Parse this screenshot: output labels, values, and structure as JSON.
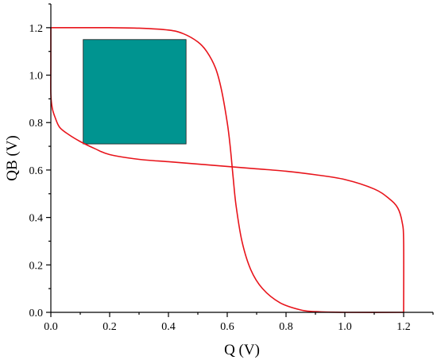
{
  "chart_data": {
    "type": "line",
    "title": "",
    "xlabel": "Q (V)",
    "ylabel": "QB (V)",
    "xlim": [
      0.0,
      1.3
    ],
    "ylim": [
      0.0,
      1.3
    ],
    "x_ticks": [
      "0.0",
      "0.2",
      "0.4",
      "0.6",
      "0.8",
      "1.0",
      "1.2"
    ],
    "y_ticks": [
      "0.0",
      "0.2",
      "0.4",
      "0.6",
      "0.8",
      "1.0",
      "1.2"
    ],
    "grid": false,
    "legend": "none",
    "colors": {
      "curve": "#e8141b",
      "box": "#009490"
    },
    "series": [
      {
        "x": [
          0.0,
          0.05,
          0.1,
          0.2,
          0.3,
          0.4,
          0.45,
          0.5,
          0.53,
          0.56,
          0.58,
          0.6,
          0.61,
          0.62,
          0.63,
          0.65,
          0.68,
          0.72,
          0.78,
          0.85,
          0.9,
          1.0,
          1.2
        ],
        "y": [
          1.2,
          1.2,
          1.2,
          1.2,
          1.198,
          1.19,
          1.175,
          1.14,
          1.1,
          1.03,
          0.94,
          0.8,
          0.7,
          0.57,
          0.45,
          0.3,
          0.18,
          0.1,
          0.04,
          0.01,
          0.003,
          0.0,
          0.0
        ]
      },
      {
        "x": [
          0.0,
          0.0,
          0.0,
          0.005,
          0.015,
          0.03,
          0.06,
          0.1,
          0.15,
          0.2,
          0.3,
          0.4,
          0.5,
          0.6,
          0.7,
          0.8,
          0.9,
          1.0,
          1.1,
          1.15,
          1.18,
          1.195,
          1.2,
          1.2
        ],
        "y": [
          1.2,
          1.05,
          0.92,
          0.86,
          0.82,
          0.78,
          0.75,
          0.72,
          0.69,
          0.665,
          0.645,
          0.635,
          0.625,
          0.615,
          0.605,
          0.595,
          0.58,
          0.56,
          0.52,
          0.48,
          0.44,
          0.38,
          0.3,
          0.0
        ]
      }
    ],
    "annotations": [
      {
        "type": "rect",
        "x0": 0.11,
        "x1": 0.46,
        "y0": 0.71,
        "y1": 1.15,
        "color": "#009490"
      }
    ]
  }
}
